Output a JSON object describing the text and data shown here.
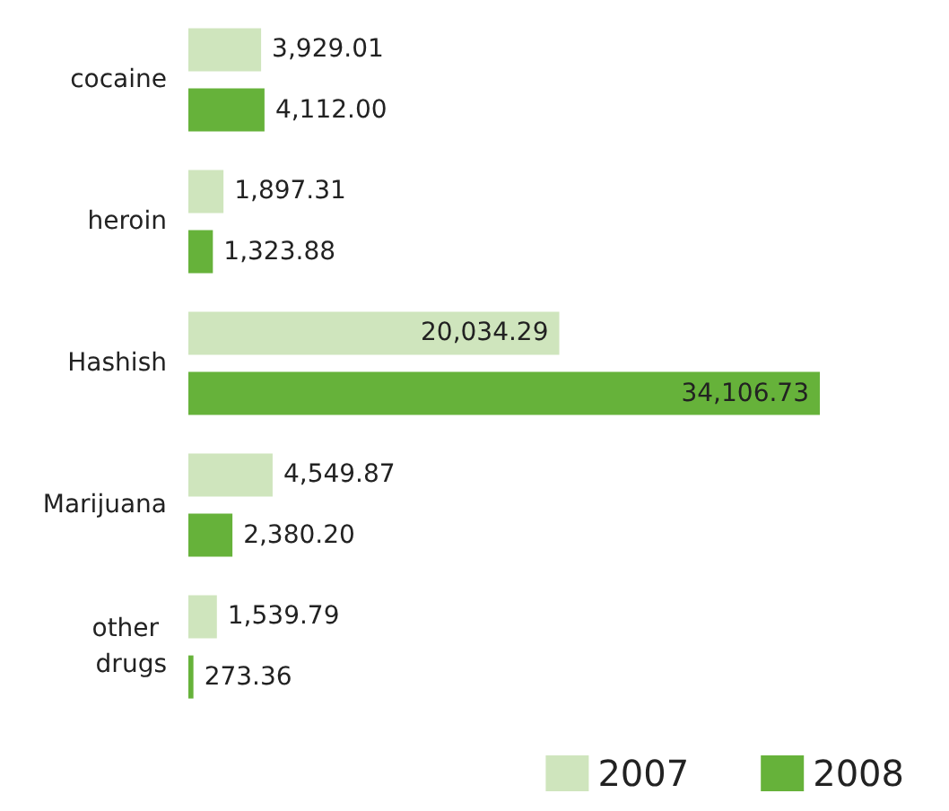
{
  "chart_data": {
    "type": "bar",
    "orientation": "horizontal",
    "categories": [
      "cocaine",
      "heroin",
      "Hashish",
      "Marijuana",
      "other drugs"
    ],
    "series": [
      {
        "name": "2007",
        "color": "#cfe5bd",
        "values": [
          3929.01,
          1897.31,
          20034.29,
          4549.87,
          1539.79
        ],
        "value_labels": [
          "3,929.01",
          "1,897.31",
          "20,034.29",
          "4,549.87",
          "1,539.79"
        ]
      },
      {
        "name": "2008",
        "color": "#66b23a",
        "values": [
          4112.0,
          1323.88,
          34106.73,
          2380.2,
          273.36
        ],
        "value_labels": [
          "4,112.00",
          "1,323.88",
          "34,106.73",
          "2,380.20",
          "273.36"
        ]
      }
    ],
    "legend": "bottom right",
    "grid": false,
    "tick_labels": "y"
  }
}
